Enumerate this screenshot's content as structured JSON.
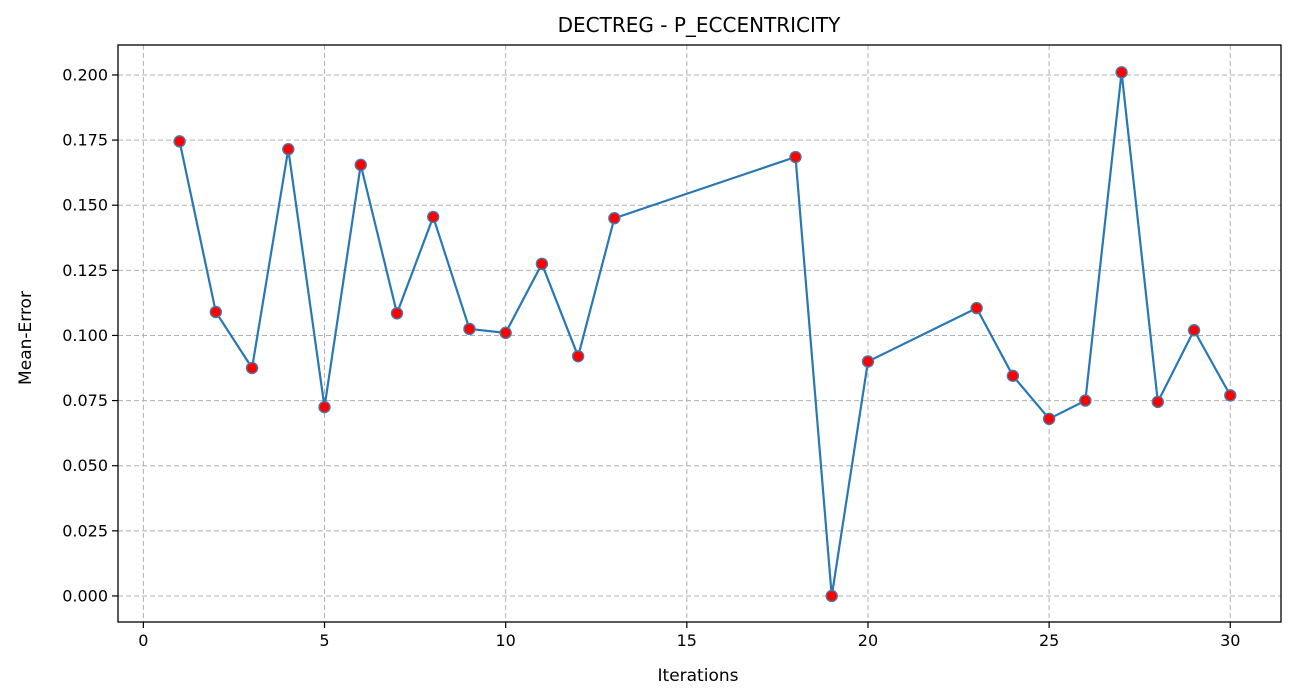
{
  "chart_data": {
    "type": "line",
    "title": "DECTREG - P_ECCENTRICITY",
    "xlabel": "Iterations",
    "ylabel": "Mean-Error",
    "xlim": [
      -0.7,
      31.4
    ],
    "ylim": [
      -0.01,
      0.2115
    ],
    "xticks": [
      0,
      5,
      10,
      15,
      20,
      25,
      30
    ],
    "yticks": [
      0.0,
      0.025,
      0.05,
      0.075,
      0.1,
      0.125,
      0.15,
      0.175,
      0.2
    ],
    "ytick_labels": [
      "0.000",
      "0.025",
      "0.050",
      "0.075",
      "0.100",
      "0.125",
      "0.150",
      "0.175",
      "0.200"
    ],
    "grid": true,
    "series": [
      {
        "x": [
          1,
          2,
          3,
          4,
          5,
          6,
          7,
          8,
          9,
          10,
          11,
          12,
          13,
          18,
          19,
          20,
          23,
          24,
          25,
          26,
          27,
          28,
          29,
          30
        ],
        "values": [
          0.1745,
          0.109,
          0.0875,
          0.1715,
          0.0725,
          0.1655,
          0.1085,
          0.1455,
          0.1025,
          0.101,
          0.1275,
          0.092,
          0.145,
          0.1685,
          0.0,
          0.09,
          0.1105,
          0.0845,
          0.068,
          0.075,
          0.201,
          0.0745,
          0.102,
          0.077
        ],
        "color": "#2878b5",
        "marker_face": "#ff0000",
        "marker_edge": "#4a78a8"
      }
    ]
  }
}
